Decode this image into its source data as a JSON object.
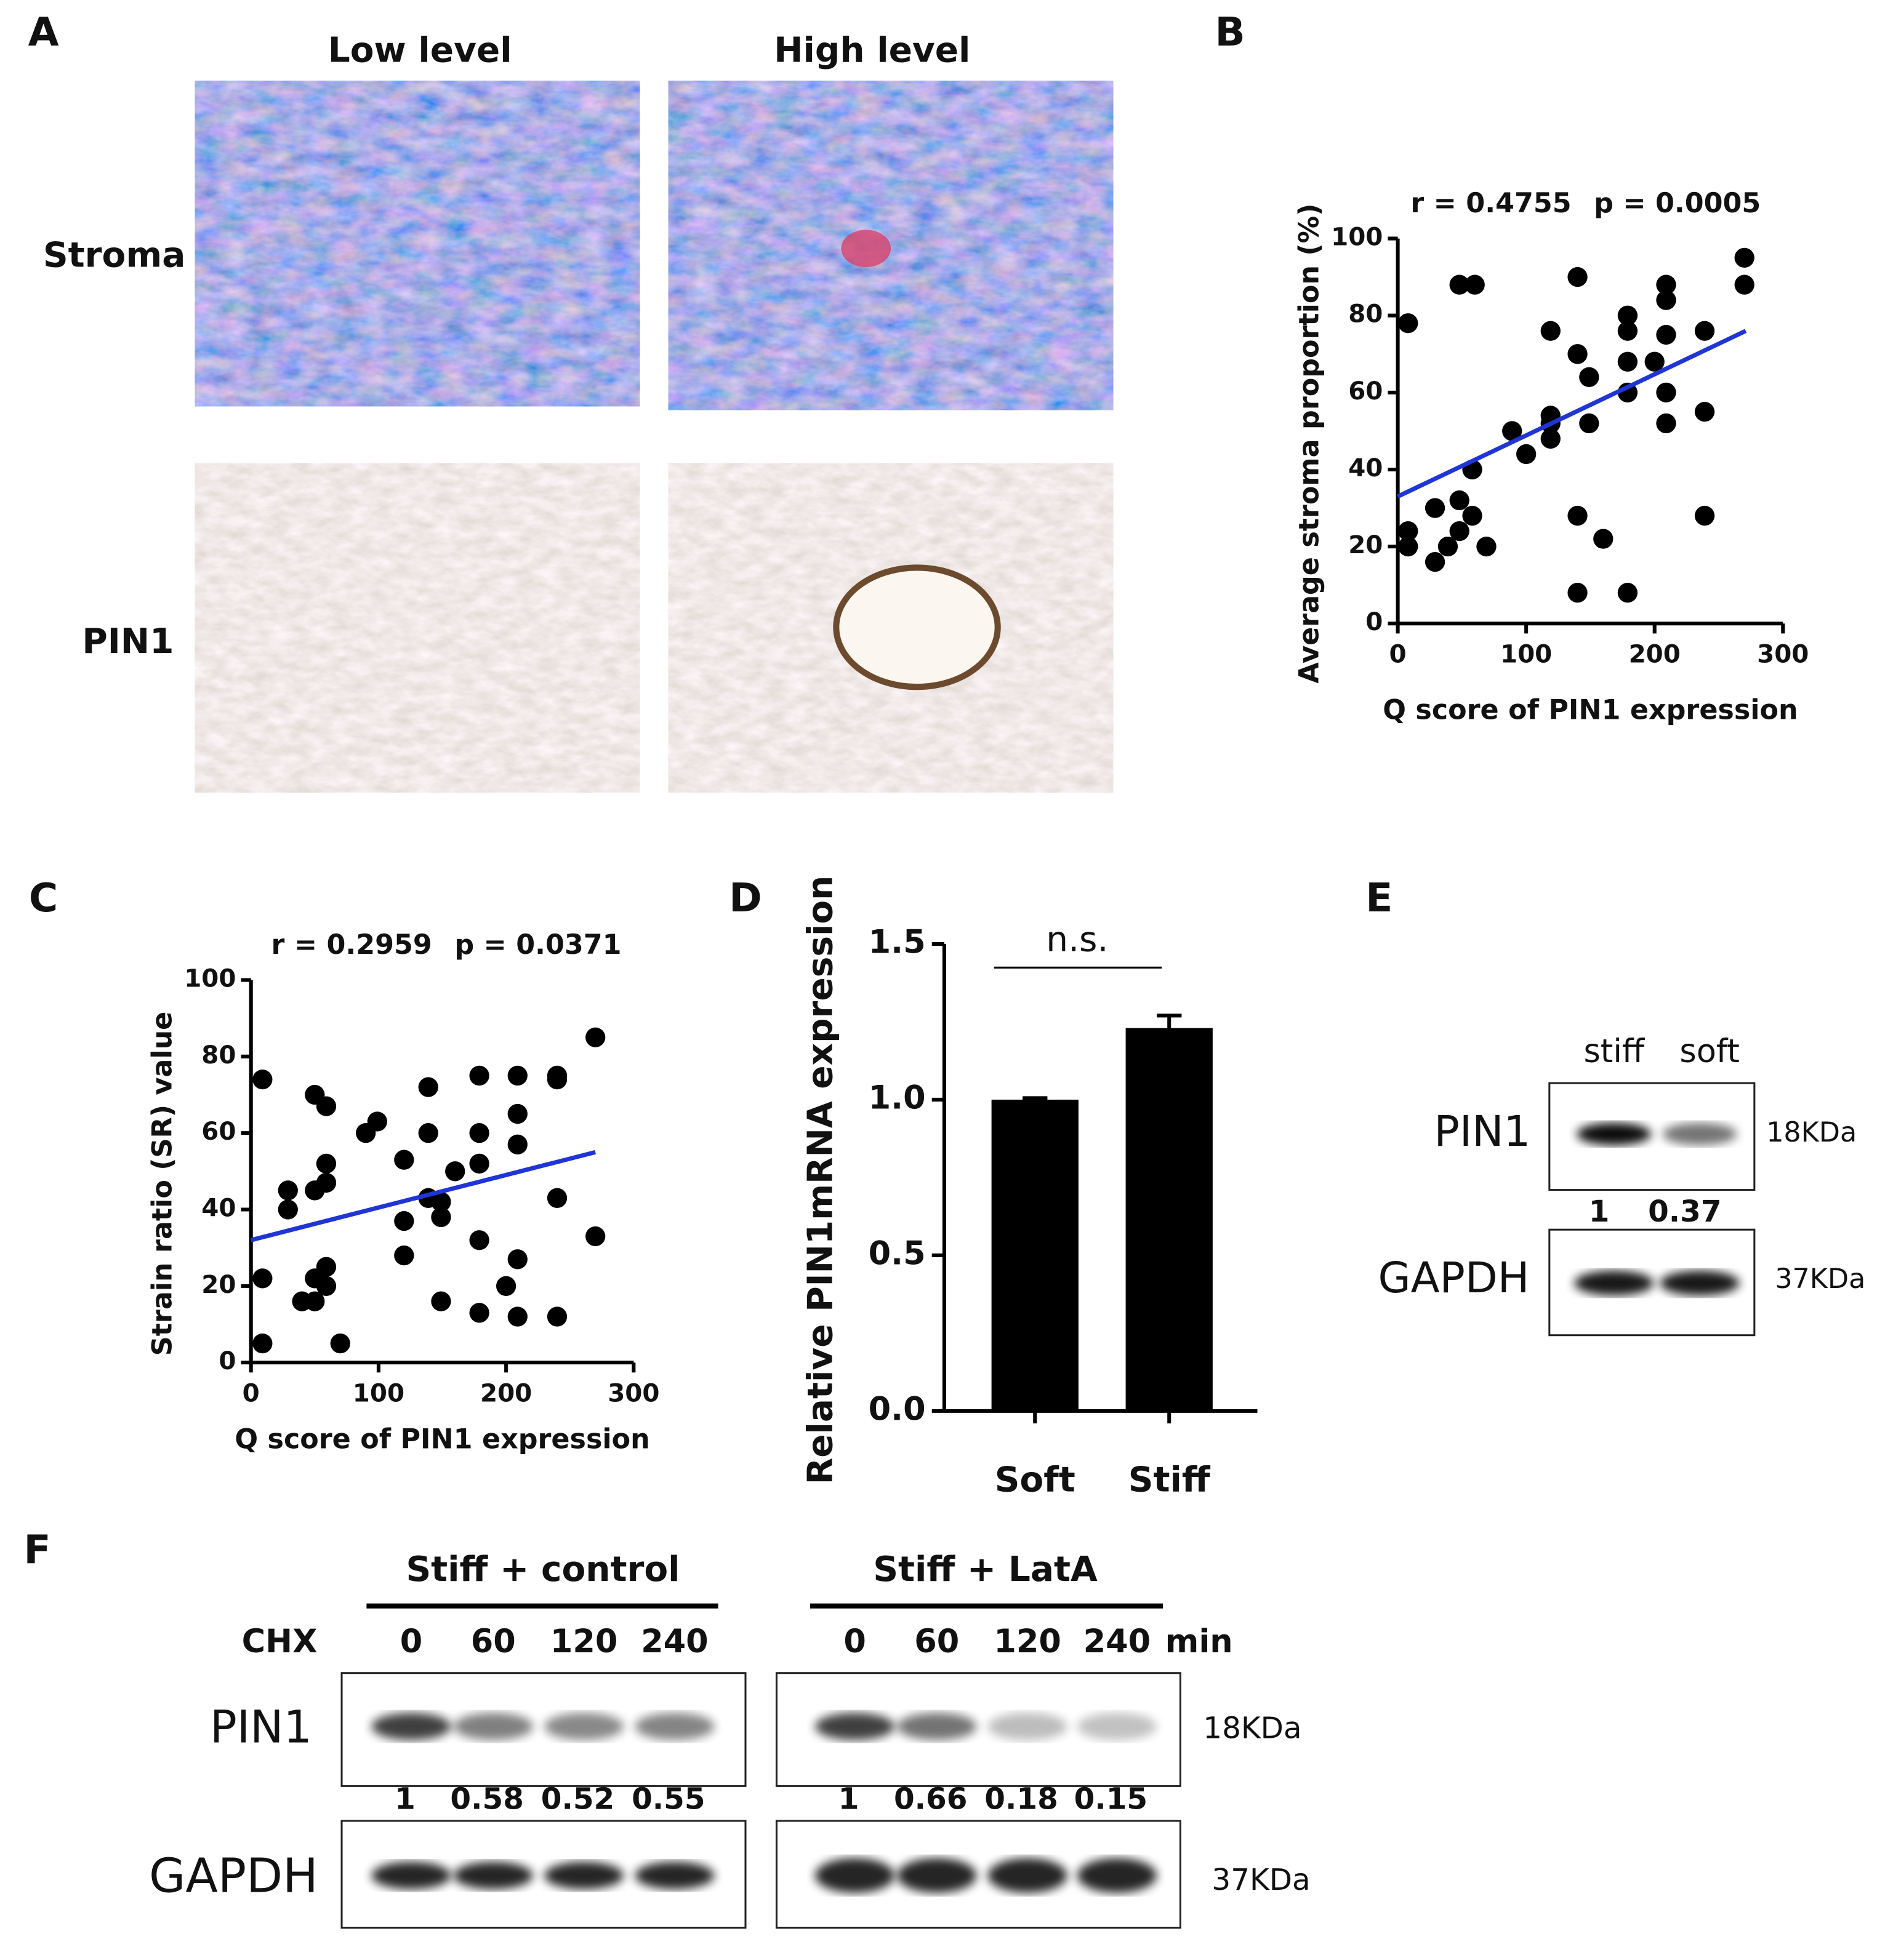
{
  "panel_labels": [
    "A",
    "B",
    "C",
    "D",
    "E",
    "F"
  ],
  "panel_a": {
    "columns": [
      "Low level",
      "High level"
    ],
    "rows": [
      "Stroma",
      "PIN1"
    ]
  },
  "chart_data": [
    {
      "type": "scatter",
      "stats": [
        "r = 0.4755",
        "p = 0.0005"
      ],
      "x_label": "Q score of PIN1 expression",
      "y_label": "Average stroma proportion (%)",
      "xlim": [
        0,
        300
      ],
      "xticks": [
        0,
        100,
        200,
        300
      ],
      "ylim": [
        0,
        100
      ],
      "yticks": [
        0,
        20,
        40,
        60,
        80,
        100
      ],
      "color": "#000000",
      "x": [
        8,
        8,
        8,
        48,
        60,
        29,
        29,
        39,
        48,
        48,
        58,
        58,
        69,
        89,
        100,
        119,
        119,
        119,
        119,
        140,
        140,
        140,
        140,
        149,
        149,
        160,
        179,
        179,
        179,
        179,
        179,
        200,
        209,
        209,
        209,
        209,
        209,
        239,
        239,
        239,
        270,
        270
      ],
      "y": [
        78,
        24,
        20,
        88,
        88,
        30,
        16,
        20,
        32,
        24,
        40,
        28,
        20,
        50,
        44,
        76,
        48,
        54,
        52,
        90,
        70,
        28,
        8,
        64,
        52,
        22,
        80,
        76,
        68,
        60,
        8,
        68,
        88,
        84,
        75,
        60,
        52,
        76,
        55,
        28,
        95,
        88
      ],
      "fit_line": {
        "x": [
          0,
          271
        ],
        "y": [
          33,
          76
        ],
        "color": "#1f35d6"
      }
    },
    {
      "type": "scatter",
      "stats": [
        "r = 0.2959",
        "p = 0.0371"
      ],
      "x_label": "Q score of PIN1 expression",
      "y_label": "Strain ratio (SR) value",
      "xlim": [
        0,
        300
      ],
      "xticks": [
        0,
        100,
        200,
        300
      ],
      "ylim": [
        0,
        100
      ],
      "yticks": [
        0,
        20,
        40,
        60,
        80,
        100
      ],
      "color": "#000000",
      "x": [
        9,
        9,
        9,
        29,
        29,
        40,
        50,
        50,
        50,
        50,
        59,
        59,
        59,
        59,
        59,
        70,
        90,
        99,
        120,
        120,
        120,
        139,
        139,
        139,
        149,
        149,
        149,
        160,
        179,
        179,
        179,
        179,
        179,
        200,
        209,
        209,
        209,
        209,
        209,
        240,
        240,
        240,
        240,
        270,
        270
      ],
      "y": [
        74,
        22,
        5,
        45,
        40,
        16,
        70,
        45,
        22,
        16,
        67,
        52,
        47,
        25,
        20,
        5,
        60,
        63,
        53,
        37,
        28,
        72,
        60,
        43,
        42,
        38,
        16,
        50,
        75,
        60,
        52,
        32,
        13,
        20,
        75,
        65,
        57,
        27,
        12,
        75,
        74,
        43,
        12,
        85,
        33
      ],
      "fit_line": {
        "x": [
          0,
          270
        ],
        "y": [
          32,
          55
        ],
        "color": "#1f35d6"
      }
    },
    {
      "type": "bar",
      "y_label": "Relative PIN1mRNA expression",
      "categories": [
        "Soft",
        "Stiff"
      ],
      "values": [
        1.0,
        1.23
      ],
      "errors": [
        0.005,
        0.04
      ],
      "color": "#000000",
      "ylim": [
        0,
        1.5
      ],
      "yticks": [
        {
          "value": 0,
          "label": "0.0"
        },
        {
          "value": 0.5,
          "label": "0.5"
        },
        {
          "value": 1,
          "label": "1.0"
        },
        {
          "value": 1.5,
          "label": "1.5"
        }
      ],
      "annotation": "n.s."
    }
  ],
  "panel_e": {
    "lanes": [
      "stiff",
      "soft"
    ],
    "rows": [
      {
        "label": "PIN1",
        "size": "18KDa"
      },
      {
        "label": "GAPDH",
        "size": "37KDa"
      }
    ],
    "quantification": [
      1,
      0.37
    ]
  },
  "panel_f": {
    "treatment_label": "CHX",
    "time_unit": "min",
    "rows": [
      {
        "label": "PIN1",
        "size": "18KDa"
      },
      {
        "label": "GAPDH",
        "size": "37KDa"
      }
    ],
    "groups": [
      {
        "title": "Stiff + control",
        "times": [
          0,
          60,
          120,
          240
        ],
        "quantification": [
          1,
          0.58,
          0.52,
          0.55
        ]
      },
      {
        "title": "Stiff + LatA",
        "times": [
          0,
          60,
          120,
          240
        ],
        "quantification": [
          1,
          0.66,
          0.18,
          0.15
        ]
      }
    ]
  }
}
